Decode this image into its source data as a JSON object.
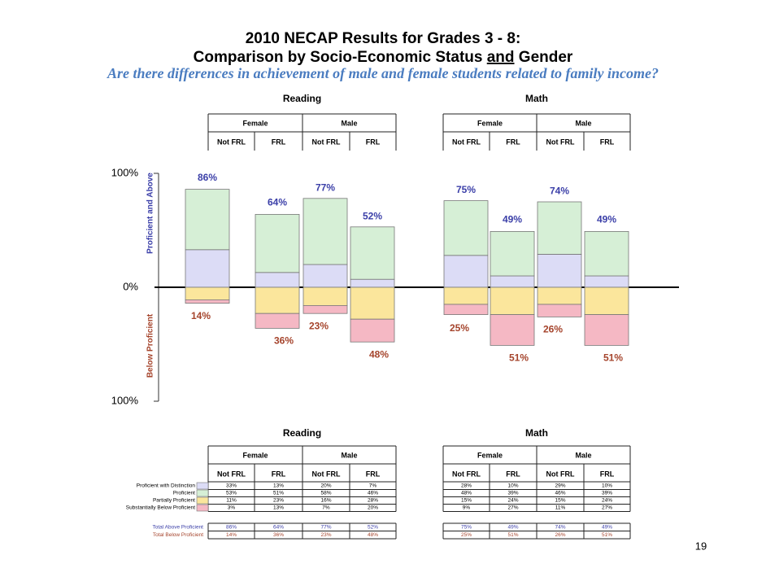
{
  "chart_data": {
    "type": "diverging_bar",
    "title": "2010 NECAP Results for Grades 3 - 8:",
    "title_line2": [
      "Comparison by Socio-Economic Status",
      "and",
      "Gender"
    ],
    "subtitle": "Are there differences in achievement of male and female students related to family income?",
    "ylabel_above": "Proficient and Above",
    "ylabel_below": "Below Proficient",
    "ylim": [
      -100,
      100
    ],
    "yticks": [
      {
        "value": 100,
        "label": "100%"
      },
      {
        "value": 0,
        "label": "0%"
      },
      {
        "value": -100,
        "label": "100%"
      }
    ],
    "panels": [
      "Reading",
      "Math"
    ],
    "genders": [
      "Female",
      "Male",
      "Female",
      "Male"
    ],
    "categories": [
      "Not FRL",
      "FRL",
      "Not FRL",
      "FRL",
      "Not FRL",
      "FRL",
      "Not FRL",
      "FRL"
    ],
    "series": [
      {
        "name": "Proficient with Distinction",
        "color": "#dcdcf6",
        "values": [
          33,
          13,
          20,
          7,
          28,
          10,
          29,
          10
        ],
        "value_labels": [
          "33%",
          "13%",
          "20%",
          "7%",
          "28%",
          "10%",
          "29%",
          "10%"
        ]
      },
      {
        "name": "Proficient",
        "color": "#d6efd6",
        "values": [
          53,
          51,
          58,
          46,
          48,
          39,
          46,
          39
        ],
        "value_labels": [
          "53%",
          "51%",
          "58%",
          "46%",
          "48%",
          "39%",
          "46%",
          "39%"
        ]
      },
      {
        "name": "Partially Proficient",
        "color": "#fbe69c",
        "values": [
          -11,
          -23,
          -16,
          -28,
          -15,
          -24,
          -15,
          -24
        ],
        "value_labels": [
          "11%",
          "23%",
          "16%",
          "28%",
          "15%",
          "24%",
          "15%",
          "24%"
        ]
      },
      {
        "name": "Substantially Below Proficient",
        "color": "#f5b8c4",
        "values": [
          -3,
          -13,
          -7,
          -20,
          -9,
          -27,
          -11,
          -27
        ],
        "value_labels": [
          "3%",
          "13%",
          "7%",
          "20%",
          "9%",
          "27%",
          "11%",
          "27%"
        ]
      }
    ],
    "totals": [
      {
        "name": "Total Above Proficient",
        "color": "#3b3fa8",
        "values": [
          86,
          64,
          77,
          52,
          75,
          49,
          74,
          49
        ],
        "value_labels": [
          "86%",
          "64%",
          "77%",
          "52%",
          "75%",
          "49%",
          "74%",
          "49%"
        ]
      },
      {
        "name": "Total Below Proficient",
        "color": "#a5442c",
        "values": [
          -14,
          -36,
          -23,
          -48,
          -25,
          -51,
          -26,
          -51
        ],
        "value_labels": [
          "14%",
          "36%",
          "23%",
          "48%",
          "25%",
          "51%",
          "26%",
          "51%"
        ]
      }
    ]
  },
  "slide": {
    "page_number": "19"
  }
}
